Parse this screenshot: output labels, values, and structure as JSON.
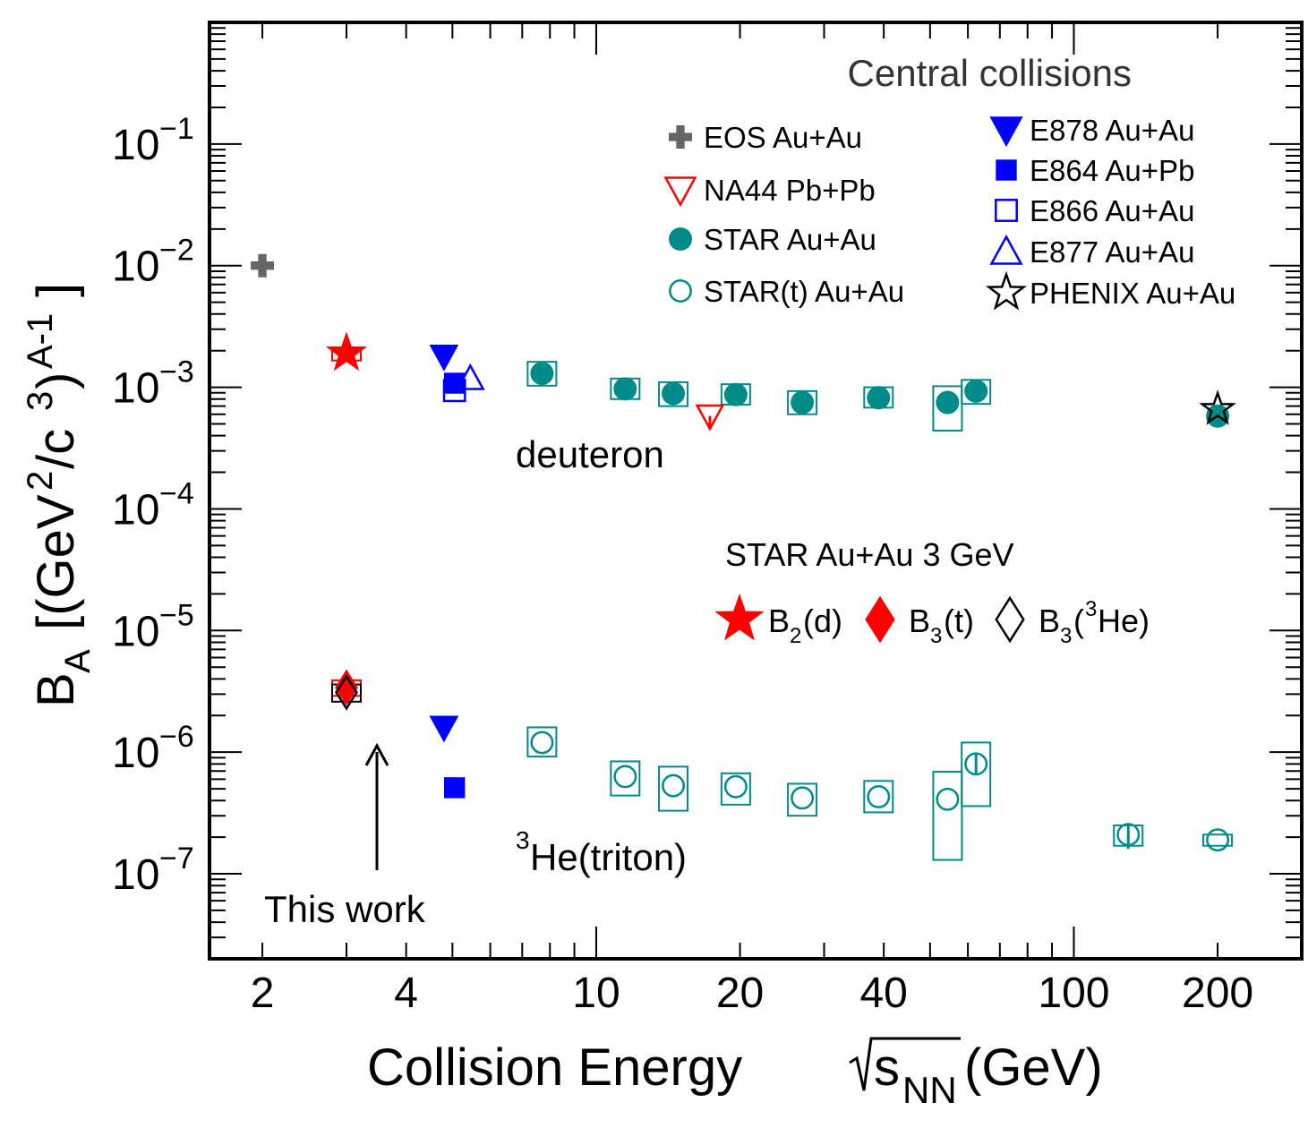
{
  "chart_data": {
    "type": "scatter",
    "x_scale": "log",
    "y_scale": "log",
    "xlim": [
      1.55,
      300
    ],
    "ylim": [
      2e-08,
      1
    ],
    "x_ticks": [
      {
        "v": 2,
        "label": "2"
      },
      {
        "v": 4,
        "label": "4"
      },
      {
        "v": 10,
        "label": "10"
      },
      {
        "v": 20,
        "label": "20"
      },
      {
        "v": 40,
        "label": "40"
      },
      {
        "v": 100,
        "label": "100"
      },
      {
        "v": 200,
        "label": "200"
      }
    ],
    "y_ticks": [
      {
        "v": 0.1,
        "base": "10",
        "exp": "−1"
      },
      {
        "v": 0.01,
        "base": "10",
        "exp": "−2"
      },
      {
        "v": 0.001,
        "base": "10",
        "exp": "−3"
      },
      {
        "v": 0.0001,
        "base": "10",
        "exp": "−4"
      },
      {
        "v": 1e-05,
        "base": "10",
        "exp": "−5"
      },
      {
        "v": 1e-06,
        "base": "10",
        "exp": "−6"
      },
      {
        "v": 1e-07,
        "base": "10",
        "exp": "−7"
      }
    ],
    "xlabel": {
      "main": "Collision Energy ",
      "sym": "s",
      "sub": "NN",
      "unit": " (GeV)"
    },
    "ylabel": {
      "b": "B",
      "bsub": "A",
      "mid": " [(GeV",
      "s2": "2",
      "c": "/c",
      "s3": "3",
      "close": ")",
      "sAm1": "A-1",
      "end": "]"
    },
    "title": "Central collisions",
    "legend": [
      {
        "label": "EOS Au+Au",
        "marker": "cross",
        "color": "#666666"
      },
      {
        "label": "NA44 Pb+Pb",
        "marker": "tri-down-open",
        "color": "#ff0000"
      },
      {
        "label": "STAR Au+Au",
        "marker": "circle",
        "color": "#008b8b"
      },
      {
        "label": "STAR(t) Au+Au",
        "marker": "circle-open",
        "color": "#008b8b"
      },
      {
        "label": "E878 Au+Au",
        "marker": "tri-down",
        "color": "#0000ff"
      },
      {
        "label": "E864 Au+Pb",
        "marker": "square",
        "color": "#0000ff"
      },
      {
        "label": "E866 Au+Au",
        "marker": "square-open",
        "color": "#0000ff"
      },
      {
        "label": "E877 Au+Au",
        "marker": "tri-up-open",
        "color": "#0000ff"
      },
      {
        "label": "PHENIX Au+Au",
        "marker": "star-open",
        "color": "#000000"
      }
    ],
    "this_work_legend": {
      "title": "STAR Au+Au 3 GeV",
      "items": [
        {
          "b": "B",
          "sub": "2",
          "rest": "(d)",
          "marker": "star",
          "color": "#ff0000"
        },
        {
          "b": "B",
          "sub": "3",
          "rest": "(t)",
          "marker": "diamond",
          "color": "#ff0000"
        },
        {
          "b": "B",
          "sub": "3",
          "pre": "(",
          "sup": "3",
          "rest": "He)",
          "marker": "diamond-open",
          "color": "#000000"
        }
      ]
    },
    "annotations": {
      "deuteron": "deuteron",
      "helium_sup": "3",
      "helium": "He(triton)",
      "this_work": "This work"
    },
    "series": [
      {
        "name": "EOS Au+Au",
        "marker": "cross",
        "color": "#666666",
        "points": [
          {
            "x": 2.0,
            "y": 0.01
          }
        ]
      },
      {
        "name": "NA44 Pb+Pb",
        "marker": "tri-down-open",
        "color": "#ff0000",
        "points": [
          {
            "x": 17.3,
            "y": 0.00058,
            "err_lo": 0.00045
          }
        ]
      },
      {
        "name": "STAR Au+Au (d)",
        "marker": "circle",
        "color": "#008b8b",
        "points": [
          {
            "x": 7.7,
            "y": 0.0013,
            "sys_lo": 0.00103,
            "sys_hi": 0.00162
          },
          {
            "x": 11.5,
            "y": 0.00097,
            "sys_lo": 0.0008,
            "sys_hi": 0.00118
          },
          {
            "x": 14.5,
            "y": 0.00089,
            "sys_lo": 0.0007,
            "sys_hi": 0.0011
          },
          {
            "x": 19.6,
            "y": 0.00087,
            "sys_lo": 0.00072,
            "sys_hi": 0.00106
          },
          {
            "x": 27,
            "y": 0.00075,
            "sys_lo": 0.0006,
            "sys_hi": 0.00093
          },
          {
            "x": 39,
            "y": 0.00082,
            "sys_lo": 0.00068,
            "sys_hi": 0.001
          },
          {
            "x": 54.4,
            "y": 0.00075,
            "sys_lo": 0.00044,
            "sys_hi": 0.00102
          },
          {
            "x": 62.4,
            "y": 0.00093,
            "sys_lo": 0.00073,
            "sys_hi": 0.00115
          },
          {
            "x": 200,
            "y": 0.00058
          }
        ]
      },
      {
        "name": "STAR(t) Au+Au",
        "marker": "circle-open",
        "color": "#008b8b",
        "points": [
          {
            "x": 7.7,
            "y": 1.2e-06,
            "sys_lo": 9.2e-07,
            "sys_hi": 1.6e-06
          },
          {
            "x": 11.5,
            "y": 6.3e-07,
            "sys_lo": 4.4e-07,
            "sys_hi": 8.4e-07
          },
          {
            "x": 14.5,
            "y": 5.3e-07,
            "sys_lo": 3.3e-07,
            "sys_hi": 7.6e-07
          },
          {
            "x": 19.6,
            "y": 5.2e-07,
            "sys_lo": 3.7e-07,
            "sys_hi": 6.7e-07
          },
          {
            "x": 27,
            "y": 4.2e-07,
            "sys_lo": 3e-07,
            "sys_hi": 5.5e-07
          },
          {
            "x": 39,
            "y": 4.3e-07,
            "sys_lo": 3.2e-07,
            "sys_hi": 5.8e-07
          },
          {
            "x": 54.4,
            "y": 4.1e-07,
            "sys_lo": 1.3e-07,
            "sys_hi": 6.9e-07
          },
          {
            "x": 62.4,
            "y": 8e-07,
            "sys_lo": 3.6e-07,
            "sys_hi": 1.2e-06,
            "err_lo": 6.5e-07,
            "err_hi": 9.8e-07
          },
          {
            "x": 130,
            "y": 2.1e-07,
            "sys_lo": 1.7e-07,
            "sys_hi": 2.5e-07,
            "err_lo": 1.6e-07,
            "err_hi": 2.5e-07
          },
          {
            "x": 200,
            "y": 1.9e-07,
            "sys_lo": 1.7e-07,
            "sys_hi": 2.1e-07
          }
        ]
      },
      {
        "name": "E878 Au+Au",
        "marker": "tri-down",
        "color": "#0000ff",
        "points": [
          {
            "x": 4.8,
            "y": 0.0018
          },
          {
            "x": 4.8,
            "y": 1.6e-06
          }
        ]
      },
      {
        "name": "E864 Au+Pb",
        "marker": "square",
        "color": "#0000ff",
        "points": [
          {
            "x": 5.05,
            "y": 0.00108
          },
          {
            "x": 5.05,
            "y": 5.1e-07,
            "err_lo": 4.3e-07
          }
        ]
      },
      {
        "name": "E866 Au+Au",
        "marker": "square-open",
        "color": "#0000ff",
        "points": [
          {
            "x": 5.05,
            "y": 0.00094
          }
        ]
      },
      {
        "name": "E877 Au+Au",
        "marker": "tri-up-open",
        "color": "#0000ff",
        "points": [
          {
            "x": 5.45,
            "y": 0.00118
          }
        ]
      },
      {
        "name": "PHENIX Au+Au",
        "marker": "star-open",
        "color": "#000000",
        "points": [
          {
            "x": 200,
            "y": 0.00066
          }
        ]
      },
      {
        "name": "B2(d) this work",
        "marker": "star",
        "color": "#ff0000",
        "points": [
          {
            "x": 3.0,
            "y": 0.0019,
            "sys_lo": 0.00166,
            "sys_hi": 0.00213,
            "sys_color": "#ff0000"
          }
        ]
      },
      {
        "name": "B3(t) this work",
        "marker": "diamond",
        "color": "#ff0000",
        "points": [
          {
            "x": 3.0,
            "y": 3.4e-06,
            "sys_lo": 2.9e-06,
            "sys_hi": 3.9e-06,
            "sys_color": "#ff0000"
          }
        ]
      },
      {
        "name": "B3(3He) this work",
        "marker": "diamond-open",
        "color": "#000000",
        "points": [
          {
            "x": 3.0,
            "y": 3.1e-06,
            "sys_lo": 2.6e-06,
            "sys_hi": 3.6e-06,
            "sys_color": "#000000"
          }
        ]
      }
    ]
  }
}
